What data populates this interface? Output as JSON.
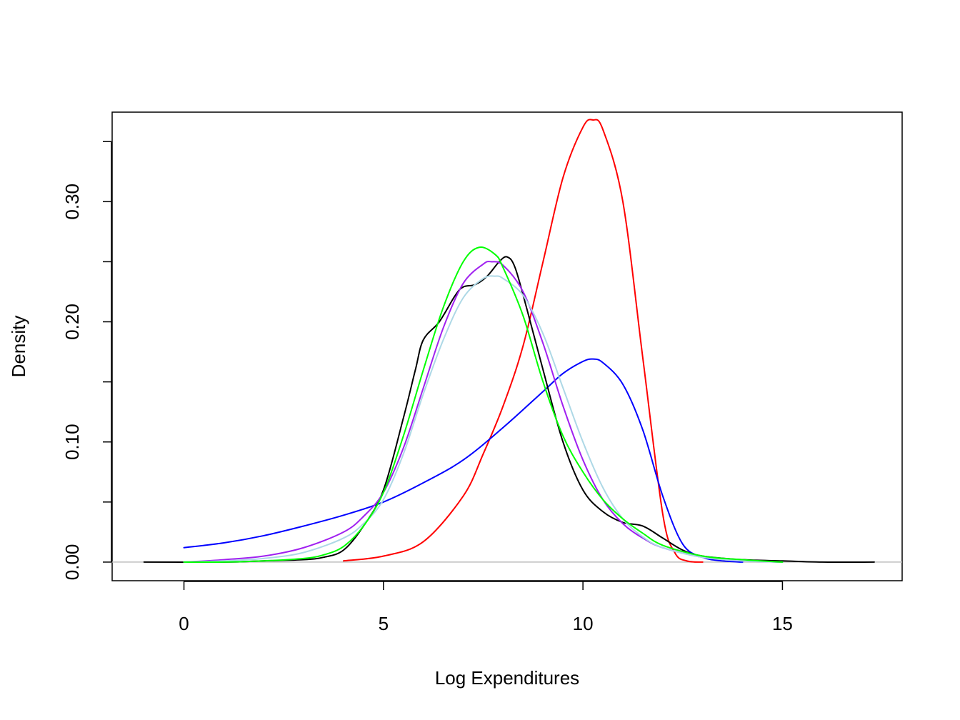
{
  "chart_data": {
    "type": "line",
    "title": "",
    "xlabel": "Log Expenditures",
    "ylabel": "Density",
    "xlim": [
      -1.8,
      18.0
    ],
    "ylim": [
      -0.0155,
      0.3745
    ],
    "x_ticks": [
      0,
      5,
      10,
      15
    ],
    "x_tick_labels": [
      "0",
      "5",
      "10",
      "15"
    ],
    "y_ticks": [
      0.0,
      0.05,
      0.1,
      0.15,
      0.2,
      0.25,
      0.3,
      0.35
    ],
    "y_tick_labels": [
      "0.00",
      "",
      "0.10",
      "",
      "0.20",
      "",
      "0.30",
      ""
    ],
    "grid": false,
    "legend": "none",
    "baseline": {
      "y": 0,
      "color": "#bebebe"
    },
    "series": [
      {
        "color": "#ff0000",
        "x": [
          4.0,
          5.0,
          6.0,
          7.0,
          7.5,
          8.0,
          8.5,
          9.0,
          9.5,
          10.0,
          10.25,
          10.5,
          11.0,
          11.5,
          12.0,
          12.3,
          12.6,
          13.0
        ],
        "y": [
          0.001,
          0.005,
          0.017,
          0.055,
          0.09,
          0.13,
          0.18,
          0.25,
          0.32,
          0.362,
          0.368,
          0.36,
          0.3,
          0.17,
          0.04,
          0.008,
          0.001,
          0.0
        ]
      },
      {
        "color": "#0000ff",
        "x": [
          0.0,
          1.0,
          2.0,
          3.0,
          4.0,
          5.0,
          6.0,
          7.0,
          8.0,
          9.0,
          9.5,
          10.0,
          10.25,
          10.5,
          11.0,
          11.5,
          12.0,
          12.5,
          13.0,
          13.5,
          14.0
        ],
        "y": [
          0.012,
          0.016,
          0.022,
          0.03,
          0.039,
          0.05,
          0.066,
          0.085,
          0.112,
          0.142,
          0.157,
          0.167,
          0.169,
          0.166,
          0.148,
          0.11,
          0.055,
          0.015,
          0.004,
          0.001,
          0.0
        ]
      },
      {
        "color": "#000000",
        "x": [
          -1.0,
          1.0,
          2.0,
          3.0,
          3.5,
          4.0,
          4.5,
          5.0,
          5.5,
          5.8,
          6.0,
          6.4,
          6.8,
          7.0,
          7.3,
          7.6,
          7.9,
          8.1,
          8.3,
          8.6,
          9.0,
          9.5,
          10.0,
          10.5,
          11.0,
          11.5,
          12.0,
          12.5,
          13.0,
          14.0,
          15.0,
          16.0,
          17.3
        ],
        "y": [
          0.0,
          0.0,
          0.001,
          0.002,
          0.004,
          0.01,
          0.03,
          0.06,
          0.12,
          0.16,
          0.185,
          0.2,
          0.222,
          0.229,
          0.231,
          0.238,
          0.25,
          0.254,
          0.245,
          0.21,
          0.16,
          0.1,
          0.06,
          0.042,
          0.033,
          0.03,
          0.02,
          0.01,
          0.005,
          0.002,
          0.001,
          0.0,
          0.0
        ]
      },
      {
        "color": "#a020f0",
        "x": [
          0.0,
          1.0,
          2.0,
          3.0,
          4.0,
          4.5,
          5.0,
          5.5,
          6.0,
          6.5,
          7.0,
          7.5,
          7.7,
          8.0,
          8.5,
          9.0,
          9.5,
          10.0,
          10.5,
          11.0,
          11.5,
          12.0,
          13.0,
          14.0,
          15.0
        ],
        "y": [
          0.0,
          0.002,
          0.005,
          0.012,
          0.025,
          0.038,
          0.058,
          0.095,
          0.145,
          0.195,
          0.232,
          0.248,
          0.25,
          0.247,
          0.225,
          0.182,
          0.13,
          0.085,
          0.052,
          0.032,
          0.02,
          0.012,
          0.004,
          0.001,
          0.0
        ]
      },
      {
        "color": "#add8e6",
        "x": [
          0.0,
          1.0,
          2.0,
          3.0,
          4.0,
          4.5,
          5.0,
          5.5,
          6.0,
          6.5,
          7.0,
          7.5,
          7.8,
          8.0,
          8.5,
          9.0,
          9.5,
          10.0,
          10.5,
          11.0,
          11.5,
          12.0,
          13.0,
          14.0,
          15.0
        ],
        "y": [
          0.0,
          0.001,
          0.003,
          0.008,
          0.02,
          0.032,
          0.052,
          0.09,
          0.14,
          0.185,
          0.22,
          0.236,
          0.238,
          0.236,
          0.222,
          0.19,
          0.145,
          0.1,
          0.062,
          0.036,
          0.021,
          0.012,
          0.004,
          0.001,
          0.0
        ]
      },
      {
        "color": "#00ff00",
        "x": [
          0.0,
          1.0,
          2.0,
          3.0,
          3.5,
          4.0,
          4.5,
          5.0,
          5.5,
          6.0,
          6.5,
          7.0,
          7.4,
          7.8,
          8.0,
          8.5,
          9.0,
          9.5,
          10.0,
          10.5,
          11.0,
          11.5,
          12.0,
          13.0,
          14.0,
          15.0
        ],
        "y": [
          0.0,
          0.0,
          0.001,
          0.003,
          0.006,
          0.013,
          0.03,
          0.058,
          0.105,
          0.16,
          0.212,
          0.25,
          0.262,
          0.256,
          0.245,
          0.205,
          0.15,
          0.105,
          0.075,
          0.052,
          0.036,
          0.024,
          0.014,
          0.005,
          0.002,
          0.0
        ]
      }
    ]
  }
}
